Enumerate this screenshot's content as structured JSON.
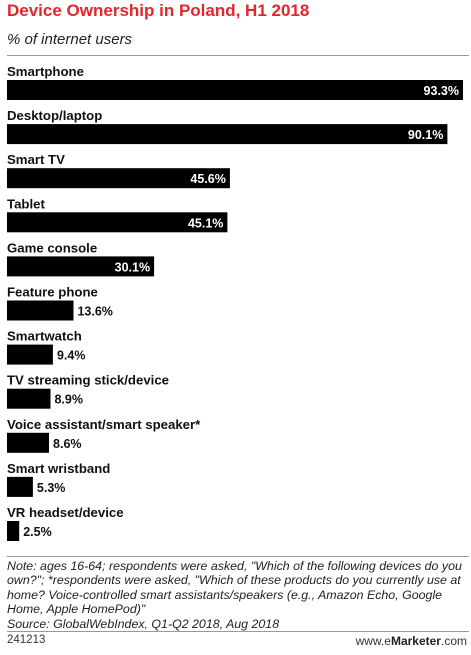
{
  "chart_data": {
    "type": "bar",
    "orientation": "horizontal",
    "title": "Device Ownership in Poland, H1 2018",
    "subtitle": "% of internet users",
    "categories": [
      "Smartphone",
      "Desktop/laptop",
      "Smart TV",
      "Tablet",
      "Game console",
      "Feature phone",
      "Smartwatch",
      "TV streaming stick/device",
      "Voice assistant/smart speaker*",
      "Smart wristband",
      "VR headset/device"
    ],
    "values": [
      93.3,
      90.1,
      45.6,
      45.1,
      30.1,
      13.6,
      9.4,
      8.9,
      8.6,
      5.3,
      2.5
    ],
    "value_labels": [
      "93.3%",
      "90.1%",
      "45.6%",
      "45.1%",
      "30.1%",
      "13.6%",
      "9.4%",
      "8.9%",
      "8.6%",
      "5.3%",
      "2.5%"
    ],
    "xlim": [
      0,
      93.3
    ],
    "grid": false,
    "bar_color": "#000000",
    "title_color": "#e3262b"
  },
  "footer": {
    "note": "Note: ages 16-64; respondents were asked, \"Which of the following devices do you own?\"; *respondents were asked, \"Which of these products do you currently use at home? Voice-controlled smart assistants/speakers (e.g., Amazon Echo, Google Home, Apple HomePod)\"",
    "source": "Source: GlobalWebIndex, Q1-Q2 2018, Aug 2018",
    "chart_id": "241213",
    "brand_prefix": "www.",
    "brand_name_e": "e",
    "brand_name_rest": "Marketer",
    "brand_suffix": ".com"
  }
}
